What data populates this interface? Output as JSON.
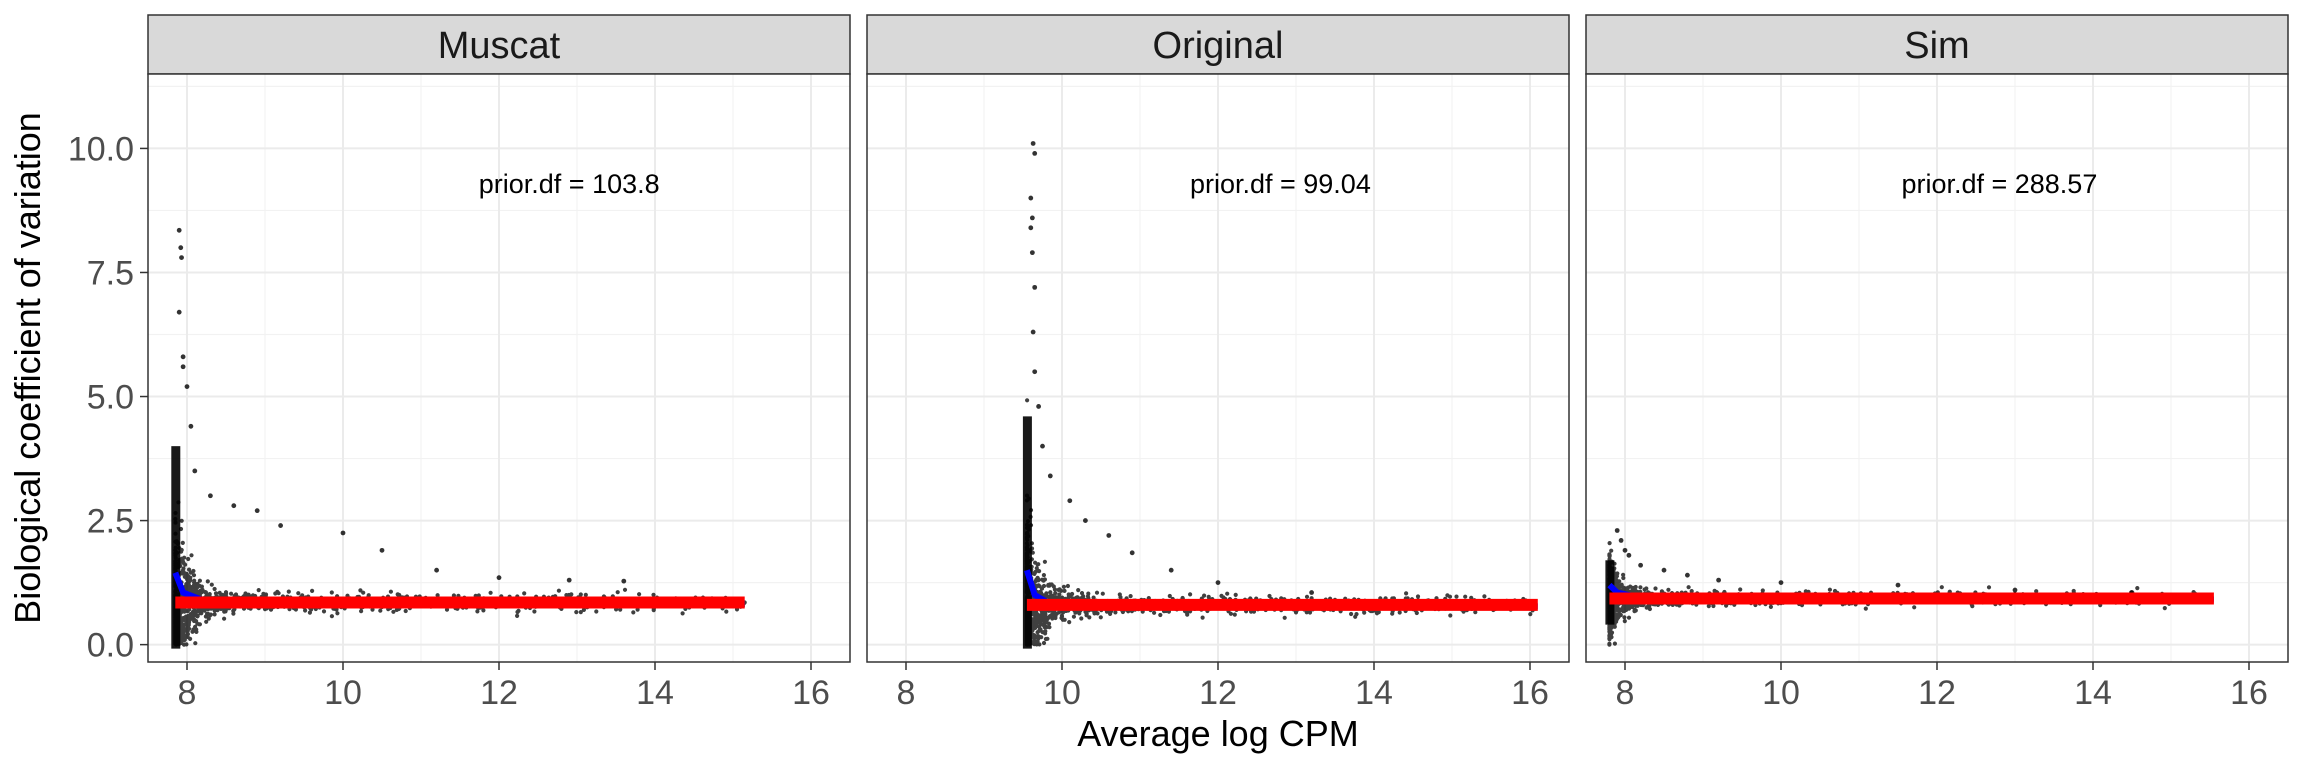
{
  "chart_data": {
    "type": "scatter",
    "xlabel": "Average log CPM",
    "ylabel": "Biological coefficient of variation",
    "xlim": [
      7.5,
      16.5
    ],
    "ylim": [
      -0.35,
      11.5
    ],
    "x_ticks": [
      8,
      10,
      12,
      14,
      16
    ],
    "x_tick_labels": [
      "8",
      "10",
      "12",
      "14",
      "16"
    ],
    "y_ticks": [
      0,
      2.5,
      5,
      7.5,
      10
    ],
    "y_tick_labels": [
      "0.0",
      "2.5",
      "5.0",
      "7.5",
      "10.0"
    ],
    "grid": true,
    "colors": {
      "points": "#000000",
      "trend": "#0000ff",
      "common": "#ff0000",
      "strip_bg": "#d9d9d9"
    },
    "panels": [
      {
        "title": "Muscat",
        "annotation": "prior.df = 103.8",
        "annotation_pos": [
          12.9,
          9.3
        ],
        "x_min": 7.85,
        "x_max": 15.15,
        "common_bcv": 0.85,
        "trend": [
          [
            7.85,
            1.45
          ],
          [
            7.95,
            1.05
          ],
          [
            8.2,
            0.9
          ],
          [
            10,
            0.87
          ],
          [
            12,
            0.85
          ],
          [
            14,
            0.83
          ],
          [
            15.15,
            0.82
          ]
        ],
        "outliers": [
          [
            7.9,
            8.35
          ],
          [
            7.92,
            8.0
          ],
          [
            7.93,
            7.8
          ],
          [
            7.9,
            6.7
          ],
          [
            7.95,
            5.8
          ],
          [
            7.95,
            5.6
          ],
          [
            8.0,
            5.2
          ],
          [
            8.05,
            4.4
          ],
          [
            8.1,
            3.5
          ],
          [
            8.3,
            3.0
          ],
          [
            8.6,
            2.8
          ],
          [
            8.9,
            2.7
          ],
          [
            9.2,
            2.4
          ],
          [
            10.0,
            2.25
          ],
          [
            10.5,
            1.9
          ],
          [
            11.2,
            1.5
          ],
          [
            12.0,
            1.35
          ],
          [
            12.9,
            1.3
          ],
          [
            13.6,
            1.28
          ]
        ]
      },
      {
        "title": "Original",
        "annotation": "prior.df = 99.04",
        "annotation_pos": [
          12.8,
          9.3
        ],
        "x_min": 9.55,
        "x_max": 16.1,
        "common_bcv": 0.8,
        "trend": [
          [
            9.55,
            1.5
          ],
          [
            9.65,
            1.0
          ],
          [
            9.85,
            0.82
          ],
          [
            11,
            0.8
          ],
          [
            13,
            0.79
          ],
          [
            15,
            0.78
          ],
          [
            16.1,
            0.77
          ]
        ],
        "outliers": [
          [
            9.63,
            10.1
          ],
          [
            9.65,
            9.9
          ],
          [
            9.6,
            9.0
          ],
          [
            9.62,
            8.6
          ],
          [
            9.6,
            8.4
          ],
          [
            9.62,
            7.9
          ],
          [
            9.65,
            7.2
          ],
          [
            9.63,
            6.3
          ],
          [
            9.65,
            5.5
          ],
          [
            9.7,
            4.8
          ],
          [
            9.75,
            4.0
          ],
          [
            9.85,
            3.4
          ],
          [
            10.1,
            2.9
          ],
          [
            10.3,
            2.5
          ],
          [
            10.6,
            2.2
          ],
          [
            10.9,
            1.85
          ],
          [
            11.4,
            1.5
          ],
          [
            12.0,
            1.25
          ],
          [
            13.2,
            1.05
          ],
          [
            14.0,
            0.8
          ]
        ]
      },
      {
        "title": "Sim",
        "annotation": "prior.df = 288.57",
        "annotation_pos": [
          12.8,
          9.3
        ],
        "x_min": 7.8,
        "x_max": 15.55,
        "common_bcv": 0.93,
        "trend": [
          [
            7.8,
            1.2
          ],
          [
            7.9,
            1.05
          ],
          [
            8.2,
            0.95
          ],
          [
            10,
            0.93
          ],
          [
            12,
            0.92
          ],
          [
            14,
            0.92
          ],
          [
            15.55,
            0.91
          ]
        ],
        "outliers": [
          [
            7.9,
            2.3
          ],
          [
            7.95,
            2.1
          ],
          [
            8.0,
            1.9
          ],
          [
            8.05,
            1.8
          ],
          [
            8.2,
            1.6
          ],
          [
            8.5,
            1.5
          ],
          [
            8.8,
            1.4
          ],
          [
            9.2,
            1.3
          ],
          [
            10.0,
            1.25
          ],
          [
            11.5,
            1.2
          ],
          [
            13.0,
            1.1
          ],
          [
            14.5,
            1.05
          ]
        ]
      }
    ]
  }
}
